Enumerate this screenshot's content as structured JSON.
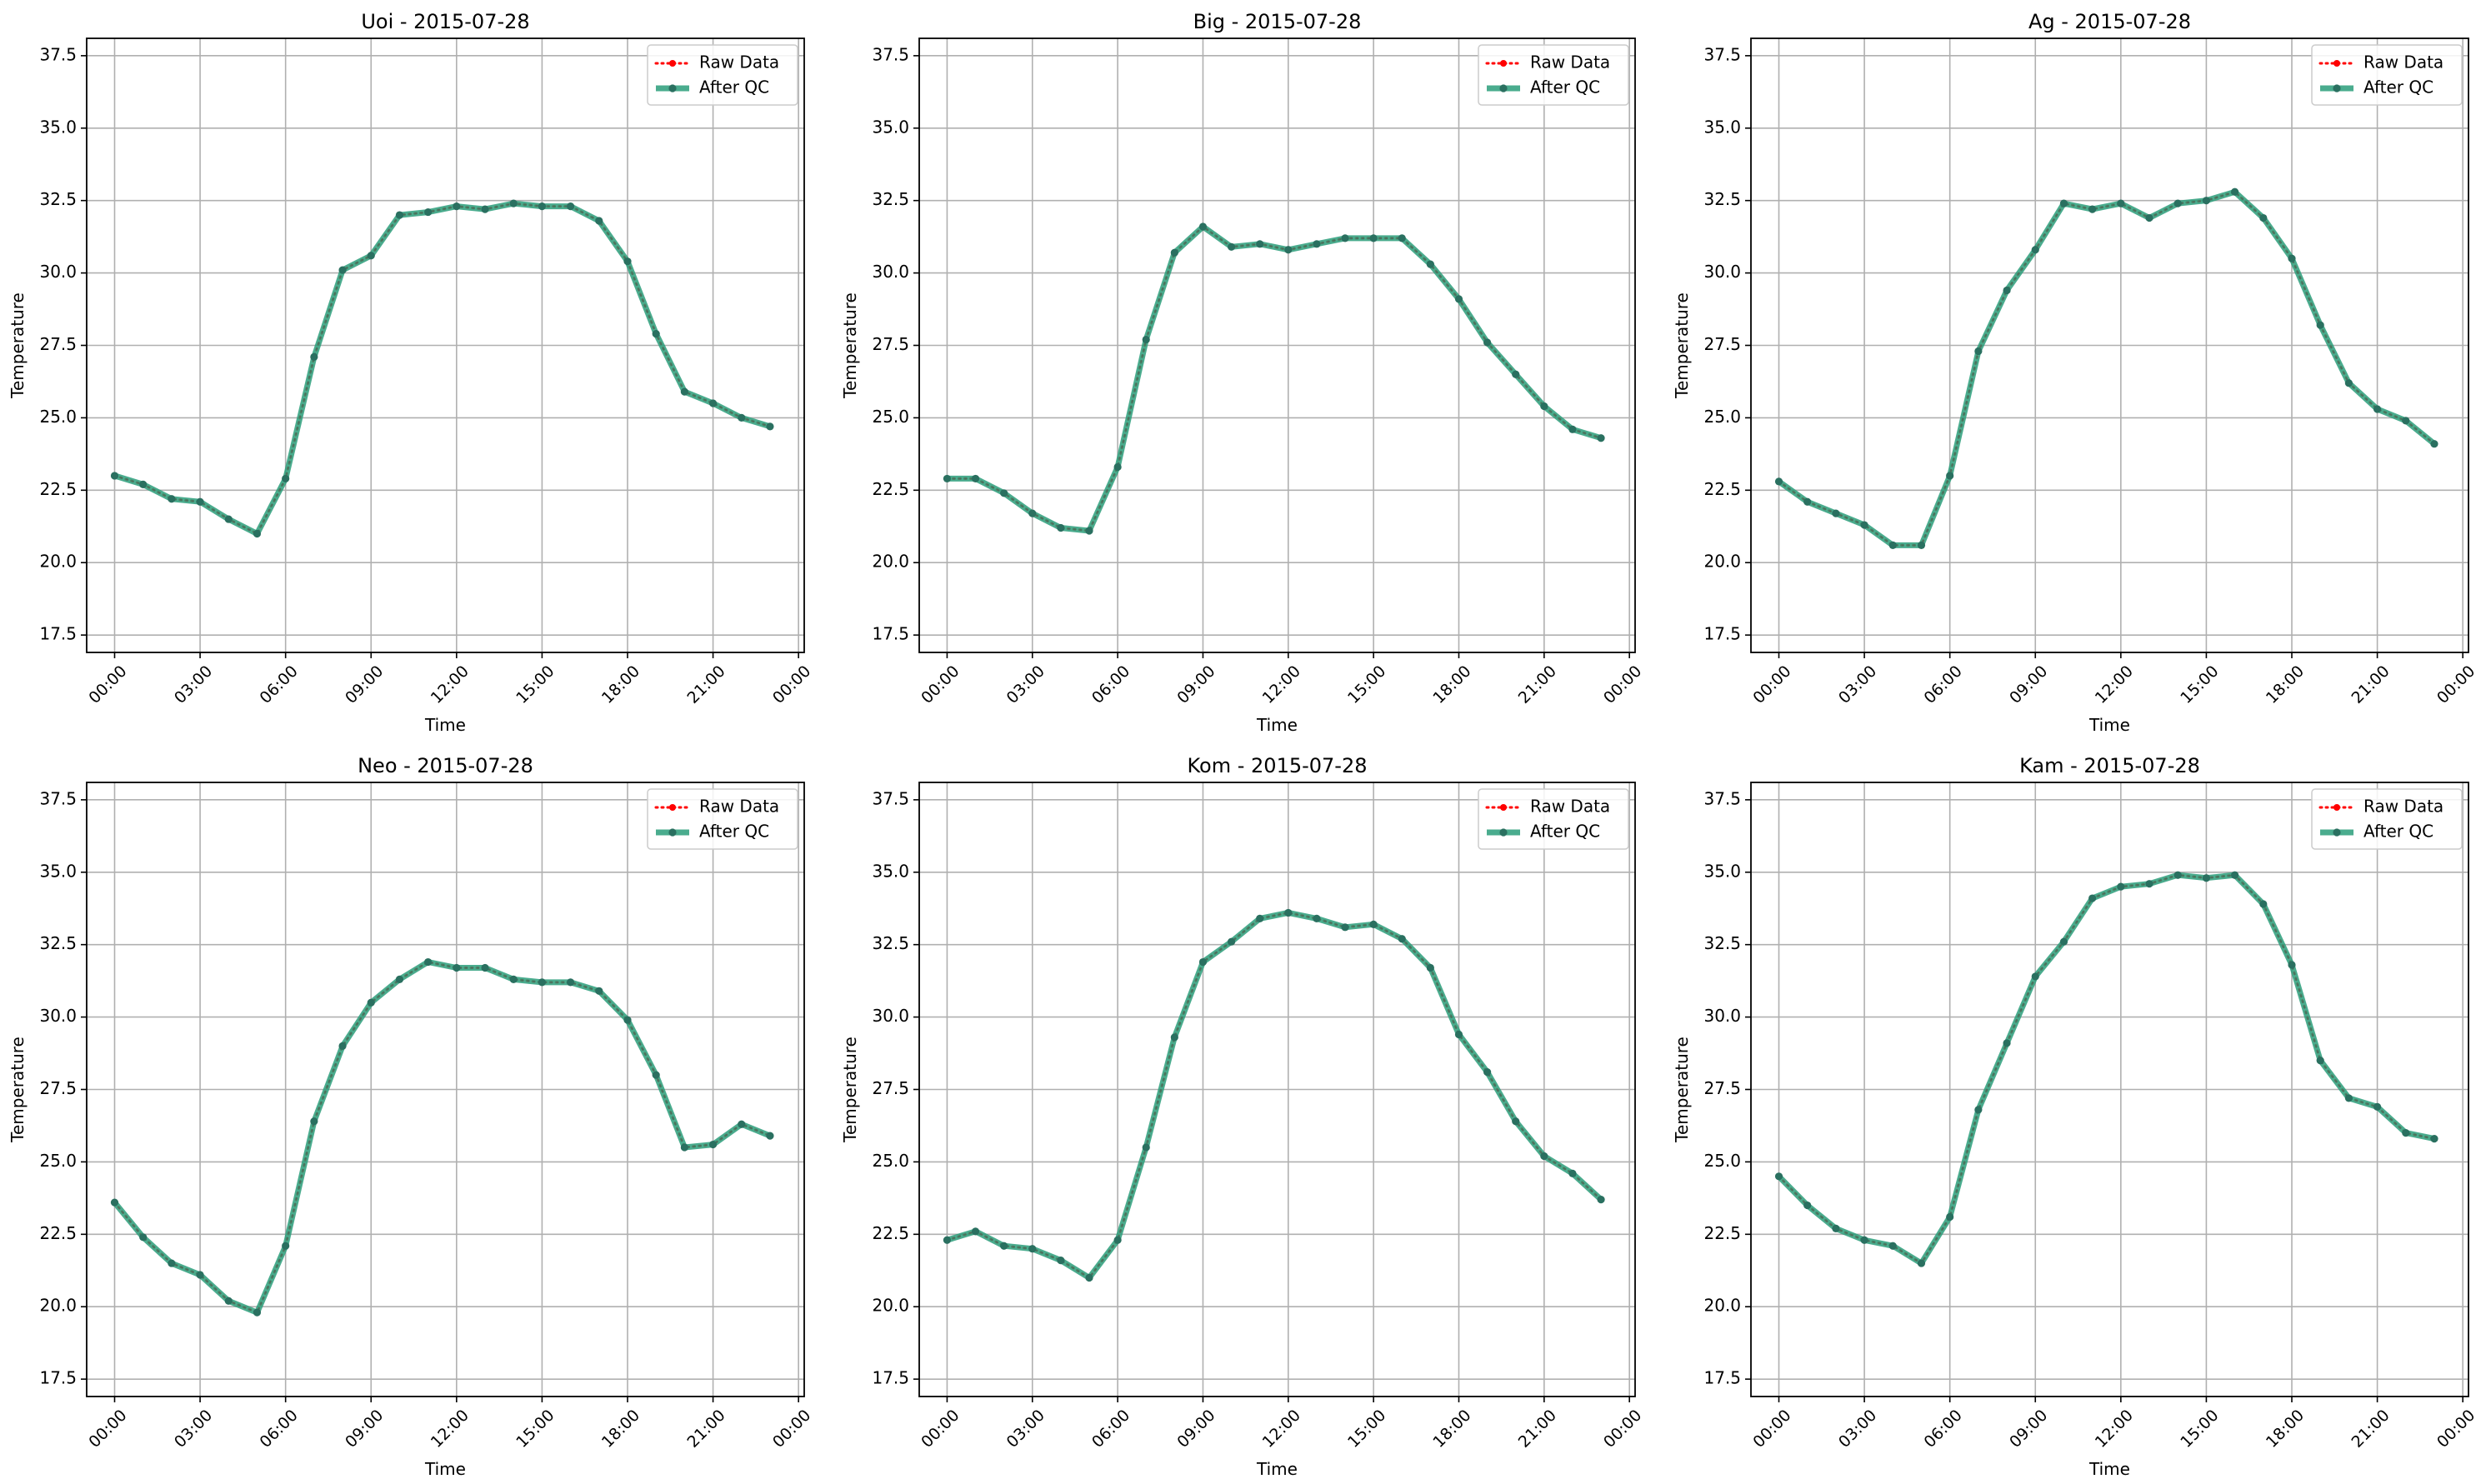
{
  "colors": {
    "raw": "#ff0000",
    "qc": "#2a9d7a",
    "qc_marker": "#2a7060",
    "grid": "#b0b0b0"
  },
  "chart_data": [
    {
      "type": "line",
      "title": "Uoi - 2015-07-28",
      "xlabel": "Time",
      "ylabel": "Temperature",
      "x": [
        0,
        1,
        2,
        3,
        4,
        5,
        6,
        7,
        8,
        9,
        10,
        11,
        12,
        13,
        14,
        15,
        16,
        17,
        18,
        19,
        20,
        21,
        22,
        23
      ],
      "xticks": [
        "00:00",
        "03:00",
        "06:00",
        "09:00",
        "12:00",
        "15:00",
        "18:00",
        "21:00",
        "00:00"
      ],
      "yticks": [
        "17.5",
        "20.0",
        "22.5",
        "25.0",
        "27.5",
        "30.0",
        "32.5",
        "35.0",
        "37.5"
      ],
      "ylim": [
        16.9,
        38.1
      ],
      "grid": true,
      "legend": "top-right",
      "series": [
        {
          "name": "Raw Data",
          "values": [
            23.0,
            22.7,
            22.2,
            22.1,
            21.5,
            21.0,
            22.9,
            27.1,
            30.1,
            30.6,
            32.0,
            32.1,
            32.3,
            32.2,
            32.4,
            32.3,
            32.3,
            31.8,
            30.4,
            27.9,
            25.9,
            25.5,
            25.0,
            24.7
          ]
        },
        {
          "name": "After QC",
          "values": [
            23.0,
            22.7,
            22.2,
            22.1,
            21.5,
            21.0,
            22.9,
            27.1,
            30.1,
            30.6,
            32.0,
            32.1,
            32.3,
            32.2,
            32.4,
            32.3,
            32.3,
            31.8,
            30.4,
            27.9,
            25.9,
            25.5,
            25.0,
            24.7
          ]
        }
      ]
    },
    {
      "type": "line",
      "title": "Big - 2015-07-28",
      "xlabel": "Time",
      "ylabel": "Temperature",
      "x": [
        0,
        1,
        2,
        3,
        4,
        5,
        6,
        7,
        8,
        9,
        10,
        11,
        12,
        13,
        14,
        15,
        16,
        17,
        18,
        19,
        20,
        21,
        22,
        23
      ],
      "xticks": [
        "00:00",
        "03:00",
        "06:00",
        "09:00",
        "12:00",
        "15:00",
        "18:00",
        "21:00",
        "00:00"
      ],
      "yticks": [
        "17.5",
        "20.0",
        "22.5",
        "25.0",
        "27.5",
        "30.0",
        "32.5",
        "35.0",
        "37.5"
      ],
      "ylim": [
        16.9,
        38.1
      ],
      "grid": true,
      "legend": "top-right",
      "series": [
        {
          "name": "Raw Data",
          "values": [
            22.9,
            22.9,
            22.4,
            21.7,
            21.2,
            21.1,
            23.3,
            27.7,
            30.7,
            31.6,
            30.9,
            31.0,
            30.8,
            31.0,
            31.2,
            31.2,
            31.2,
            30.3,
            29.1,
            27.6,
            26.5,
            25.4,
            24.6,
            24.3
          ]
        },
        {
          "name": "After QC",
          "values": [
            22.9,
            22.9,
            22.4,
            21.7,
            21.2,
            21.1,
            23.3,
            27.7,
            30.7,
            31.6,
            30.9,
            31.0,
            30.8,
            31.0,
            31.2,
            31.2,
            31.2,
            30.3,
            29.1,
            27.6,
            26.5,
            25.4,
            24.6,
            24.3
          ]
        }
      ]
    },
    {
      "type": "line",
      "title": "Ag - 2015-07-28",
      "xlabel": "Time",
      "ylabel": "Temperature",
      "x": [
        0,
        1,
        2,
        3,
        4,
        5,
        6,
        7,
        8,
        9,
        10,
        11,
        12,
        13,
        14,
        15,
        16,
        17,
        18,
        19,
        20,
        21,
        22,
        23
      ],
      "xticks": [
        "00:00",
        "03:00",
        "06:00",
        "09:00",
        "12:00",
        "15:00",
        "18:00",
        "21:00",
        "00:00"
      ],
      "yticks": [
        "17.5",
        "20.0",
        "22.5",
        "25.0",
        "27.5",
        "30.0",
        "32.5",
        "35.0",
        "37.5"
      ],
      "ylim": [
        16.9,
        38.1
      ],
      "grid": true,
      "legend": "top-right",
      "series": [
        {
          "name": "Raw Data",
          "values": [
            22.8,
            22.1,
            21.7,
            21.3,
            20.6,
            20.6,
            23.0,
            27.3,
            29.4,
            30.8,
            32.4,
            32.2,
            32.4,
            31.9,
            32.4,
            32.5,
            32.8,
            31.9,
            30.5,
            28.2,
            26.2,
            25.3,
            24.9,
            24.1
          ]
        },
        {
          "name": "After QC",
          "values": [
            22.8,
            22.1,
            21.7,
            21.3,
            20.6,
            20.6,
            23.0,
            27.3,
            29.4,
            30.8,
            32.4,
            32.2,
            32.4,
            31.9,
            32.4,
            32.5,
            32.8,
            31.9,
            30.5,
            28.2,
            26.2,
            25.3,
            24.9,
            24.1
          ]
        }
      ]
    },
    {
      "type": "line",
      "title": "Neo - 2015-07-28",
      "xlabel": "Time",
      "ylabel": "Temperature",
      "x": [
        0,
        1,
        2,
        3,
        4,
        5,
        6,
        7,
        8,
        9,
        10,
        11,
        12,
        13,
        14,
        15,
        16,
        17,
        18,
        19,
        20,
        21,
        22,
        23
      ],
      "xticks": [
        "00:00",
        "03:00",
        "06:00",
        "09:00",
        "12:00",
        "15:00",
        "18:00",
        "21:00",
        "00:00"
      ],
      "yticks": [
        "17.5",
        "20.0",
        "22.5",
        "25.0",
        "27.5",
        "30.0",
        "32.5",
        "35.0",
        "37.5"
      ],
      "ylim": [
        16.9,
        38.1
      ],
      "grid": true,
      "legend": "top-right",
      "series": [
        {
          "name": "Raw Data",
          "values": [
            23.6,
            22.4,
            21.5,
            21.1,
            20.2,
            19.8,
            22.1,
            26.4,
            29.0,
            30.5,
            31.3,
            31.9,
            31.7,
            31.7,
            31.3,
            31.2,
            31.2,
            30.9,
            29.9,
            28.0,
            25.5,
            25.6,
            26.3,
            25.9
          ]
        },
        {
          "name": "After QC",
          "values": [
            23.6,
            22.4,
            21.5,
            21.1,
            20.2,
            19.8,
            22.1,
            26.4,
            29.0,
            30.5,
            31.3,
            31.9,
            31.7,
            31.7,
            31.3,
            31.2,
            31.2,
            30.9,
            29.9,
            28.0,
            25.5,
            25.6,
            26.3,
            25.9
          ]
        }
      ]
    },
    {
      "type": "line",
      "title": "Kom - 2015-07-28",
      "xlabel": "Time",
      "ylabel": "Temperature",
      "x": [
        0,
        1,
        2,
        3,
        4,
        5,
        6,
        7,
        8,
        9,
        10,
        11,
        12,
        13,
        14,
        15,
        16,
        17,
        18,
        19,
        20,
        21,
        22,
        23
      ],
      "xticks": [
        "00:00",
        "03:00",
        "06:00",
        "09:00",
        "12:00",
        "15:00",
        "18:00",
        "21:00",
        "00:00"
      ],
      "yticks": [
        "17.5",
        "20.0",
        "22.5",
        "25.0",
        "27.5",
        "30.0",
        "32.5",
        "35.0",
        "37.5"
      ],
      "ylim": [
        16.9,
        38.1
      ],
      "grid": true,
      "legend": "top-right",
      "series": [
        {
          "name": "Raw Data",
          "values": [
            22.3,
            22.6,
            22.1,
            22.0,
            21.6,
            21.0,
            22.3,
            25.5,
            29.3,
            31.9,
            32.6,
            33.4,
            33.6,
            33.4,
            33.1,
            33.2,
            32.7,
            31.7,
            29.4,
            28.1,
            26.4,
            25.2,
            24.6,
            23.7
          ]
        },
        {
          "name": "After QC",
          "values": [
            22.3,
            22.6,
            22.1,
            22.0,
            21.6,
            21.0,
            22.3,
            25.5,
            29.3,
            31.9,
            32.6,
            33.4,
            33.6,
            33.4,
            33.1,
            33.2,
            32.7,
            31.7,
            29.4,
            28.1,
            26.4,
            25.2,
            24.6,
            23.7
          ]
        }
      ]
    },
    {
      "type": "line",
      "title": "Kam - 2015-07-28",
      "xlabel": "Time",
      "ylabel": "Temperature",
      "x": [
        0,
        1,
        2,
        3,
        4,
        5,
        6,
        7,
        8,
        9,
        10,
        11,
        12,
        13,
        14,
        15,
        16,
        17,
        18,
        19,
        20,
        21,
        22,
        23
      ],
      "xticks": [
        "00:00",
        "03:00",
        "06:00",
        "09:00",
        "12:00",
        "15:00",
        "18:00",
        "21:00",
        "00:00"
      ],
      "yticks": [
        "17.5",
        "20.0",
        "22.5",
        "25.0",
        "27.5",
        "30.0",
        "32.5",
        "35.0",
        "37.5"
      ],
      "ylim": [
        16.9,
        38.1
      ],
      "grid": true,
      "legend": "top-right",
      "series": [
        {
          "name": "Raw Data",
          "values": [
            24.5,
            23.5,
            22.7,
            22.3,
            22.1,
            21.5,
            23.1,
            26.8,
            29.1,
            31.4,
            32.6,
            34.1,
            34.5,
            34.6,
            34.9,
            34.8,
            34.9,
            33.9,
            31.8,
            28.5,
            27.2,
            26.9,
            26.0,
            25.8
          ]
        },
        {
          "name": "After QC",
          "values": [
            24.5,
            23.5,
            22.7,
            22.3,
            22.1,
            21.5,
            23.1,
            26.8,
            29.1,
            31.4,
            32.6,
            34.1,
            34.5,
            34.6,
            34.9,
            34.8,
            34.9,
            33.9,
            31.8,
            28.5,
            27.2,
            26.9,
            26.0,
            25.8
          ]
        }
      ]
    }
  ]
}
